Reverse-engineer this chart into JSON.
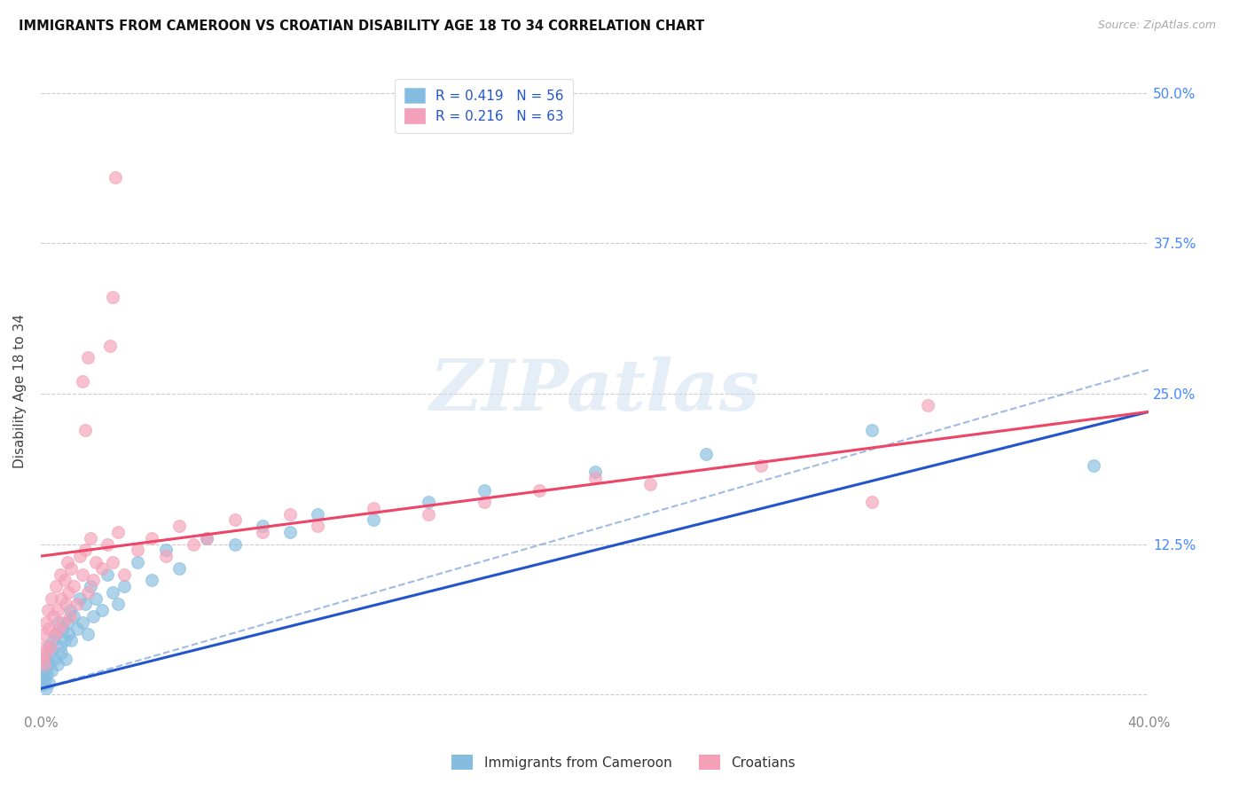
{
  "title": "IMMIGRANTS FROM CAMEROON VS CROATIAN DISABILITY AGE 18 TO 34 CORRELATION CHART",
  "source": "Source: ZipAtlas.com",
  "ylabel": "Disability Age 18 to 34",
  "legend_label_blue": "R = 0.419   N = 56",
  "legend_label_pink": "R = 0.216   N = 63",
  "color_blue": "#85bde0",
  "color_pink": "#f4a0b8",
  "color_trendline_blue": "#2255cc",
  "color_trendline_pink": "#ee4466",
  "color_dashed": "#88aadd",
  "watermark_text": "ZIPatlas",
  "legend_bottom_blue": "Immigrants from Cameroon",
  "legend_bottom_pink": "Croatians",
  "xlim": [
    0.0,
    40.0
  ],
  "ylim": [
    -1.5,
    52.0
  ],
  "yticks": [
    0.0,
    12.5,
    25.0,
    37.5,
    50.0
  ],
  "ytick_labels_right": [
    "",
    "12.5%",
    "25.0%",
    "37.5%",
    "50.0%"
  ],
  "xtick_labels": [
    "0.0%",
    "40.0%"
  ],
  "xtick_positions": [
    0.0,
    40.0
  ],
  "blue_trend_x0": 0.0,
  "blue_trend_y0": 0.5,
  "blue_trend_x1": 40.0,
  "blue_trend_y1": 23.5,
  "blue_dash_x0": 0.0,
  "blue_dash_y0": 0.5,
  "blue_dash_x1": 40.0,
  "blue_dash_y1": 27.0,
  "pink_trend_x0": 0.0,
  "pink_trend_y0": 11.5,
  "pink_trend_x1": 40.0,
  "pink_trend_y1": 23.5,
  "blue_points_x": [
    0.08,
    0.1,
    0.12,
    0.15,
    0.18,
    0.2,
    0.22,
    0.25,
    0.28,
    0.3,
    0.35,
    0.4,
    0.45,
    0.5,
    0.55,
    0.6,
    0.65,
    0.7,
    0.75,
    0.8,
    0.85,
    0.9,
    0.95,
    1.0,
    1.05,
    1.1,
    1.2,
    1.3,
    1.4,
    1.5,
    1.6,
    1.7,
    1.8,
    1.9,
    2.0,
    2.2,
    2.4,
    2.6,
    2.8,
    3.0,
    3.5,
    4.0,
    4.5,
    5.0,
    6.0,
    7.0,
    8.0,
    9.0,
    10.0,
    12.0,
    14.0,
    16.0,
    20.0,
    24.0,
    30.0,
    38.0
  ],
  "blue_points_y": [
    1.5,
    0.8,
    2.0,
    1.2,
    0.5,
    3.0,
    1.8,
    2.5,
    1.0,
    4.0,
    3.5,
    2.0,
    4.5,
    3.0,
    5.0,
    2.5,
    6.0,
    4.0,
    3.5,
    5.5,
    4.5,
    3.0,
    6.0,
    5.0,
    7.0,
    4.5,
    6.5,
    5.5,
    8.0,
    6.0,
    7.5,
    5.0,
    9.0,
    6.5,
    8.0,
    7.0,
    10.0,
    8.5,
    7.5,
    9.0,
    11.0,
    9.5,
    12.0,
    10.5,
    13.0,
    12.5,
    14.0,
    13.5,
    15.0,
    14.5,
    16.0,
    17.0,
    18.5,
    20.0,
    22.0,
    19.0
  ],
  "pink_points_x": [
    0.08,
    0.1,
    0.12,
    0.15,
    0.18,
    0.2,
    0.25,
    0.3,
    0.35,
    0.4,
    0.45,
    0.5,
    0.55,
    0.6,
    0.65,
    0.7,
    0.75,
    0.8,
    0.85,
    0.9,
    0.95,
    1.0,
    1.05,
    1.1,
    1.2,
    1.3,
    1.4,
    1.5,
    1.6,
    1.7,
    1.8,
    1.9,
    2.0,
    2.2,
    2.4,
    2.6,
    2.8,
    3.0,
    3.5,
    4.0,
    4.5,
    5.0,
    5.5,
    6.0,
    7.0,
    8.0,
    9.0,
    10.0,
    12.0,
    14.0,
    16.0,
    18.0,
    20.0,
    22.0,
    26.0,
    30.0,
    32.0,
    2.5,
    2.6,
    2.7,
    1.5,
    1.6,
    1.7
  ],
  "pink_points_y": [
    3.0,
    5.0,
    2.5,
    4.0,
    6.0,
    3.5,
    7.0,
    5.5,
    4.0,
    8.0,
    6.5,
    5.0,
    9.0,
    7.0,
    5.5,
    10.0,
    8.0,
    6.0,
    9.5,
    7.5,
    11.0,
    8.5,
    6.5,
    10.5,
    9.0,
    7.5,
    11.5,
    10.0,
    12.0,
    8.5,
    13.0,
    9.5,
    11.0,
    10.5,
    12.5,
    11.0,
    13.5,
    10.0,
    12.0,
    13.0,
    11.5,
    14.0,
    12.5,
    13.0,
    14.5,
    13.5,
    15.0,
    14.0,
    15.5,
    15.0,
    16.0,
    17.0,
    18.0,
    17.5,
    19.0,
    16.0,
    24.0,
    29.0,
    33.0,
    43.0,
    26.0,
    22.0,
    28.0
  ]
}
